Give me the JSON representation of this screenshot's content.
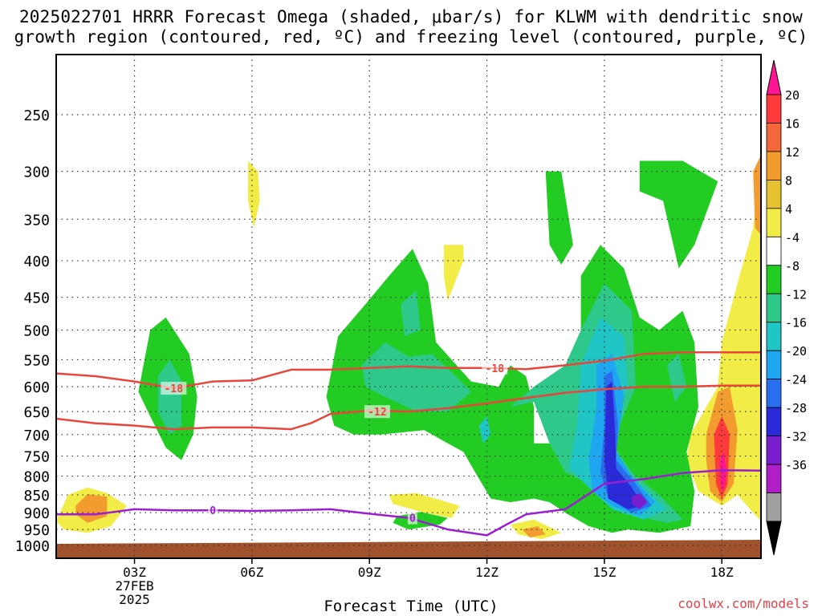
{
  "title_line1": "2025022701 HRRR Forecast Omega (shaded, μbar/s) for KLWM with dendritic snow",
  "title_line2": "growth region (contoured, red, ºC) and freezing level (contoured, purple, ºC)",
  "credit": "coolwx.com/models",
  "chart_data": {
    "type": "heatmap",
    "title": "2025022701 HRRR Forecast Omega (shaded, μbar/s) for KLWM with dendritic snow growth region (contoured, red, ºC) and freezing level (contoured, purple, ºC)",
    "xlabel": "Forecast Time (UTC)",
    "ylabel": "",
    "x_ticks": [
      "03Z",
      "06Z",
      "09Z",
      "12Z",
      "15Z",
      "18Z"
    ],
    "x_tick_hours": [
      3,
      6,
      9,
      12,
      15,
      18
    ],
    "x_sublabels": [
      "27FEB",
      "2025"
    ],
    "xlim": [
      1,
      19
    ],
    "y_ticks": [
      250,
      300,
      350,
      400,
      450,
      500,
      550,
      600,
      650,
      700,
      750,
      800,
      850,
      900,
      950,
      1000
    ],
    "ylim": [
      200,
      1000
    ],
    "y_scale": "log-pressure",
    "grid": true,
    "colorbar": {
      "levels": [
        20,
        16,
        12,
        8,
        4,
        -4,
        -8,
        -12,
        -16,
        -20,
        -24,
        -28,
        -32,
        -36
      ],
      "colors": [
        "#ff1493",
        "#ff3a3a",
        "#f2683a",
        "#f29b2e",
        "#e6c233",
        "#f2ec46",
        "#ffffff",
        "#22cc22",
        "#2ec88a",
        "#20c6c6",
        "#1ea6f0",
        "#2a6ef0",
        "#2a2ad8",
        "#7a1fd0",
        "#b01ec8",
        "#a0a0a0",
        "#000000"
      ]
    },
    "omega_regions": [
      {
        "hour": 4.0,
        "p": 630,
        "min": -12
      },
      {
        "hour": 9.3,
        "p": 570,
        "min": -12
      },
      {
        "hour": 10.0,
        "p": 470,
        "min": -12
      },
      {
        "hour": 11.6,
        "p": 650,
        "min": -12
      },
      {
        "hour": 13.2,
        "p": 350,
        "min": -8
      },
      {
        "hour": 13.2,
        "p": 700,
        "min": -12
      },
      {
        "hour": 15.1,
        "p": 690,
        "min": -28
      },
      {
        "hour": 16.0,
        "p": 870,
        "min": -32
      },
      {
        "hour": 17.0,
        "p": 560,
        "min": -12
      },
      {
        "hour": 17.0,
        "p": 300,
        "min": -8
      },
      {
        "hour": 18.0,
        "p": 800,
        "max": 20
      },
      {
        "hour": 1.9,
        "p": 880,
        "max": 12
      },
      {
        "hour": 13.0,
        "p": 960,
        "max": 12
      }
    ],
    "series": [
      {
        "name": "-18",
        "color": "#e8453c",
        "x": [
          1,
          2,
          3,
          4,
          5,
          6,
          7,
          8,
          9,
          10,
          11,
          12,
          13,
          14,
          15,
          16,
          17,
          18,
          19
        ],
        "y": [
          575,
          580,
          590,
          603,
          590,
          588,
          568,
          568,
          565,
          562,
          565,
          565,
          567,
          560,
          552,
          540,
          537,
          537,
          537
        ]
      },
      {
        "name": "-12",
        "color": "#e8453c",
        "x": [
          1,
          2,
          3,
          4,
          5,
          6,
          7,
          7.5,
          8,
          9,
          10,
          11,
          12,
          13,
          14,
          15,
          16,
          17,
          18,
          19
        ],
        "y": [
          665,
          675,
          680,
          688,
          684,
          684,
          688,
          675,
          655,
          648,
          650,
          643,
          633,
          622,
          612,
          605,
          600,
          600,
          598,
          598
        ]
      },
      {
        "name": "0",
        "color": "#9b1fd1",
        "x": [
          1,
          2,
          3,
          4,
          5,
          6,
          7,
          8,
          9,
          10,
          11,
          12,
          12.5,
          13,
          14,
          15,
          16,
          17,
          18,
          19
        ],
        "y": [
          905,
          905,
          890,
          893,
          893,
          895,
          893,
          890,
          903,
          915,
          950,
          968,
          935,
          905,
          890,
          820,
          808,
          792,
          785,
          786
        ]
      }
    ],
    "contour_labels": [
      {
        "text": "-18",
        "hour": 4.0,
        "p": 603
      },
      {
        "text": "-18",
        "hour": 12.2,
        "p": 565
      },
      {
        "text": "-12",
        "hour": 9.2,
        "p": 650
      },
      {
        "text": "0",
        "hour": 5.0,
        "p": 893
      },
      {
        "text": "0",
        "hour": 10.1,
        "p": 915
      }
    ]
  }
}
